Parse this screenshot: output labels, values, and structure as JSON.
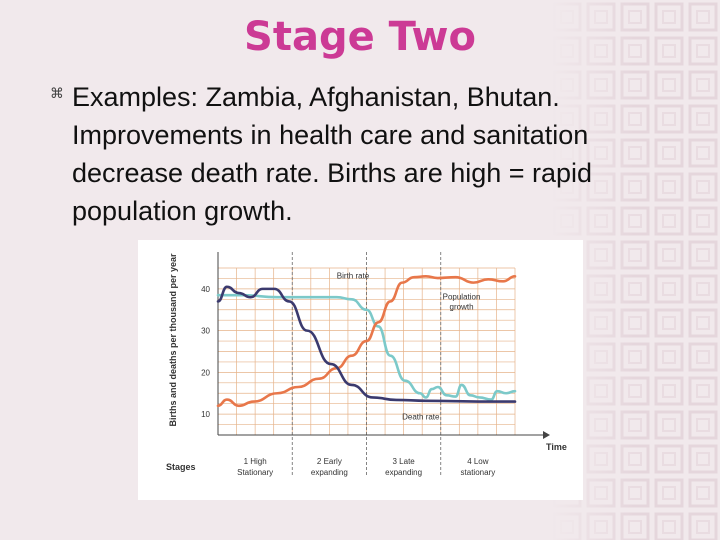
{
  "slide": {
    "title": "Stage Two",
    "bullet_icon": "command-icon",
    "bullet_text": "Examples: Zambia, Afghanistan, Bhutan. Improvements in health care and sanitation decrease death rate.  Births are high = rapid population growth."
  },
  "colors": {
    "title": "#cc3a95",
    "birth_rate": "#e8774a",
    "death_rate": "#3b3a6e",
    "population_growth": "#7cc9c9",
    "grid": "#e6b38a"
  },
  "chart_data": {
    "type": "line",
    "ylabel": "Births and deaths per thousand per year",
    "xlabel": "Time",
    "stages_label": "Stages",
    "yticks": [
      10,
      20,
      30,
      40
    ],
    "ylim": [
      5,
      45
    ],
    "xlim": [
      0,
      100
    ],
    "stages": [
      {
        "line1": "1 High",
        "line2": "Stationary"
      },
      {
        "line1": "2 Early",
        "line2": "expanding"
      },
      {
        "line1": "3 Late",
        "line2": "expanding"
      },
      {
        "line1": "4 Low",
        "line2": "stationary"
      }
    ],
    "annotations": {
      "birth_rate": "Birth rate",
      "death_rate": "Death rate",
      "population_growth_1": "Population",
      "population_growth_2": "growth"
    },
    "series": [
      {
        "key": "death",
        "x": [
          0,
          3,
          7,
          11,
          15,
          19,
          24,
          30,
          38,
          45,
          52,
          60,
          70,
          80,
          90,
          100
        ],
        "y": [
          37,
          40.5,
          39,
          38,
          40,
          40,
          37,
          30,
          22,
          17,
          14,
          13.4,
          13.2,
          13.1,
          13,
          13
        ]
      },
      {
        "key": "birth",
        "x": [
          0,
          3,
          7,
          12,
          20,
          27,
          34,
          40,
          45,
          50,
          54,
          58,
          62,
          66,
          70,
          74,
          80,
          86,
          91,
          96,
          100
        ],
        "y": [
          12,
          13.5,
          12,
          13,
          15,
          16.5,
          18.5,
          21,
          24,
          27.5,
          32,
          37,
          41.5,
          42.8,
          43,
          42.6,
          42.8,
          41.5,
          42.3,
          41.8,
          43
        ]
      },
      {
        "key": "growth",
        "x": [
          0,
          8,
          20,
          30,
          40,
          45,
          50,
          54,
          58,
          63,
          68,
          70,
          72,
          74,
          77,
          80,
          82,
          85,
          88,
          92,
          94,
          97,
          100
        ],
        "y": [
          38.5,
          38.5,
          38,
          38,
          38,
          37.5,
          35,
          31,
          24,
          18,
          15,
          14,
          16,
          16.5,
          14.5,
          14.2,
          17,
          14.5,
          14,
          13.5,
          15.5,
          15,
          15.5
        ]
      }
    ]
  }
}
